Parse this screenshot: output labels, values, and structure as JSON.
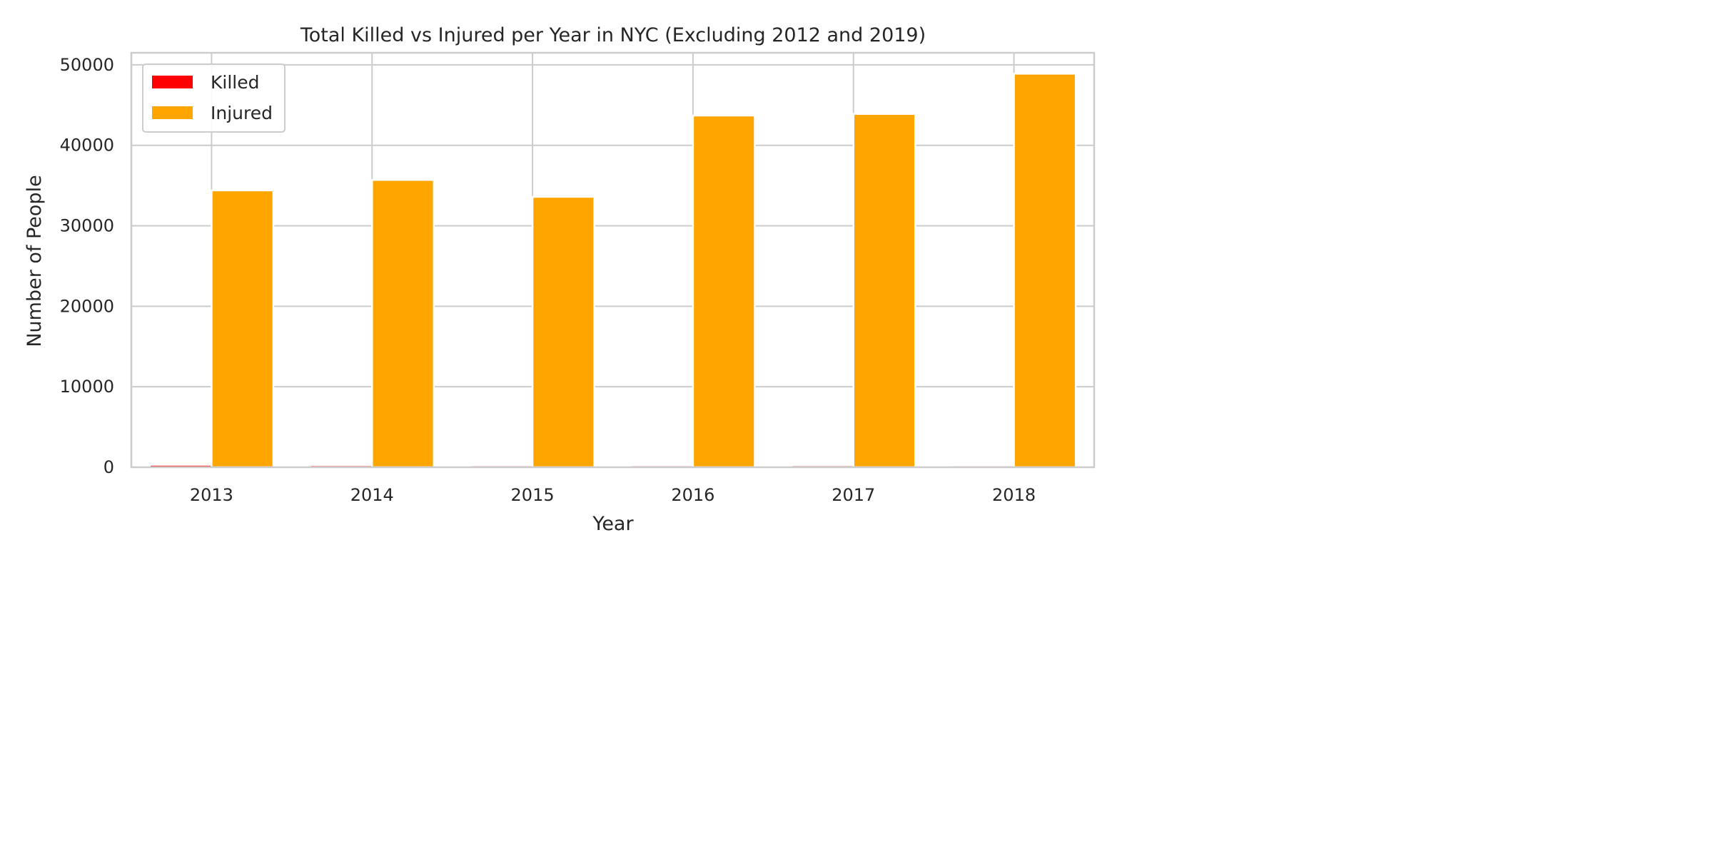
{
  "chart_data": {
    "type": "bar",
    "title": "Total Killed vs Injured per Year in NYC (Excluding 2012 and 2019)",
    "xlabel": "Year",
    "ylabel": "Number of People",
    "categories": [
      "2013",
      "2014",
      "2015",
      "2016",
      "2017",
      "2018"
    ],
    "series": [
      {
        "name": "Killed",
        "color": "#ff0000",
        "values": [
          300,
          260,
          240,
          240,
          250,
          230
        ]
      },
      {
        "name": "Injured",
        "color": "#ffa500",
        "values": [
          34400,
          35700,
          33600,
          43700,
          43900,
          48900
        ]
      }
    ],
    "ylim": [
      0,
      51500
    ],
    "yticks": [
      0,
      10000,
      20000,
      30000,
      40000,
      50000
    ],
    "grid": true,
    "legend": "top-left"
  }
}
